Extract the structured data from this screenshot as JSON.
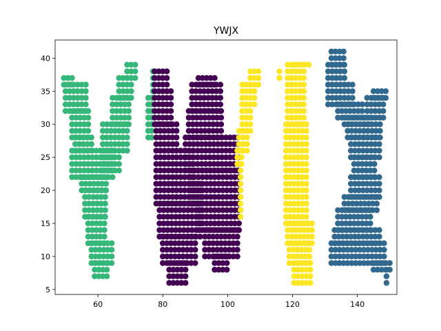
{
  "chart_data": {
    "type": "scatter",
    "title": "YWJX",
    "xlabel": "",
    "ylabel": "",
    "xlim": [
      46.8,
      152.2
    ],
    "ylim": [
      4.25,
      42.75
    ],
    "xticks": [
      60,
      80,
      100,
      120,
      140
    ],
    "yticks": [
      5,
      10,
      15,
      20,
      25,
      30,
      35,
      40
    ],
    "grid": false,
    "legend": "none",
    "marker_radius_data": 0.9,
    "series": [
      {
        "color": "#35b779",
        "shapes": [
          {
            "rows": [
              [
                36,
                37,
                49.5,
                52
              ],
              [
                32,
                36,
                50,
                57
              ],
              [
                28,
                32,
                52,
                58
              ],
              [
                26,
                28,
                53,
                59
              ],
              [
                22,
                26,
                52,
                65
              ],
              [
                20,
                22,
                55,
                63
              ],
              [
                16,
                20,
                56,
                63
              ],
              [
                12,
                16,
                57,
                63
              ],
              [
                9,
                12,
                58,
                65
              ],
              [
                7,
                9,
                59,
                63
              ]
            ],
            "xstep": 1.25
          },
          {
            "rows": [
              [
                37,
                39,
                69,
                71.5
              ],
              [
                34,
                37,
                66.5,
                71
              ],
              [
                30,
                34,
                64.5,
                70
              ],
              [
                26,
                30,
                61.5,
                70
              ],
              [
                23,
                26,
                61.5,
                67
              ]
            ],
            "xstep": 1.25
          },
          {
            "rows": [
              [
                28,
                34,
                75.5,
                77
              ],
              [
                34,
                38,
                77,
                78
              ]
            ],
            "xstep": 1.1
          }
        ]
      },
      {
        "color": "#440154",
        "shapes": [
          {
            "rows": [
              [
                35,
                38,
                77.5,
                81.5
              ],
              [
                30,
                35,
                77.5,
                83.5
              ],
              [
                26,
                30,
                78,
                85
              ],
              [
                21,
                26,
                78,
                90
              ],
              [
                18,
                21,
                78,
                92
              ],
              [
                13,
                18,
                79,
                92
              ],
              [
                9,
                13,
                80,
                90
              ],
              [
                6,
                9,
                82,
                87
              ]
            ],
            "xstep": 1.25
          },
          {
            "rows": [
              [
                36,
                37,
                91,
                97
              ],
              [
                32,
                36,
                89,
                98
              ],
              [
                28,
                32,
                88,
                99
              ],
              [
                23,
                28,
                87,
                104
              ],
              [
                18,
                23,
                88.5,
                104
              ],
              [
                14,
                18,
                91,
                104
              ],
              [
                10,
                14,
                93,
                103
              ],
              [
                8,
                10,
                96,
                100
              ]
            ],
            "xstep": 1.25
          }
        ]
      },
      {
        "color": "#fde725",
        "shapes": [
          {
            "rows": [
              [
                36,
                38,
                107,
                110
              ],
              [
                33,
                36,
                104.5,
                109
              ],
              [
                29,
                33,
                104.5,
                107
              ],
              [
                26,
                29,
                103.5,
                106.5
              ],
              [
                24,
                26,
                103,
                105
              ],
              [
                16,
                24,
                104,
                104.5
              ]
            ],
            "xstep": 1.25
          },
          {
            "rows": [
              [
                37,
                38,
                116,
                116
              ],
              [
                39,
                39,
                120,
                125
              ],
              [
                30,
                39,
                118.5,
                124.5
              ],
              [
                15,
                30,
                118,
                124.5
              ],
              [
                12,
                15,
                118.5,
                126
              ],
              [
                9,
                12,
                119,
                126
              ],
              [
                6,
                9,
                120.5,
                126
              ]
            ],
            "xstep": 1.25
          }
        ]
      },
      {
        "color": "#31688e",
        "shapes": [
          {
            "rows": [
              [
                39,
                41,
                132,
                136
              ],
              [
                36,
                39,
                131,
                136
              ],
              [
                33,
                36,
                131,
                139
              ],
              [
                31,
                33,
                134,
                142
              ],
              [
                30,
                31,
                136,
                144
              ],
              [
                28,
                30,
                137,
                146
              ],
              [
                25,
                28,
                138,
                147
              ],
              [
                22,
                25,
                139,
                146
              ],
              [
                19,
                22,
                138,
                147
              ],
              [
                17,
                19,
                136,
                146
              ],
              [
                14,
                17,
                134,
                145
              ],
              [
                12,
                14,
                133,
                147
              ],
              [
                9,
                12,
                132,
                149
              ],
              [
                8,
                9,
                145,
                150
              ],
              [
                6,
                8,
                149,
                150
              ]
            ],
            "xstep": 1.25
          },
          {
            "rows": [
              [
                34,
                35,
                145,
                149
              ],
              [
                31,
                34,
                143,
                148
              ],
              [
                28,
                31,
                142,
                147
              ]
            ],
            "xstep": 1.25
          }
        ]
      }
    ]
  }
}
